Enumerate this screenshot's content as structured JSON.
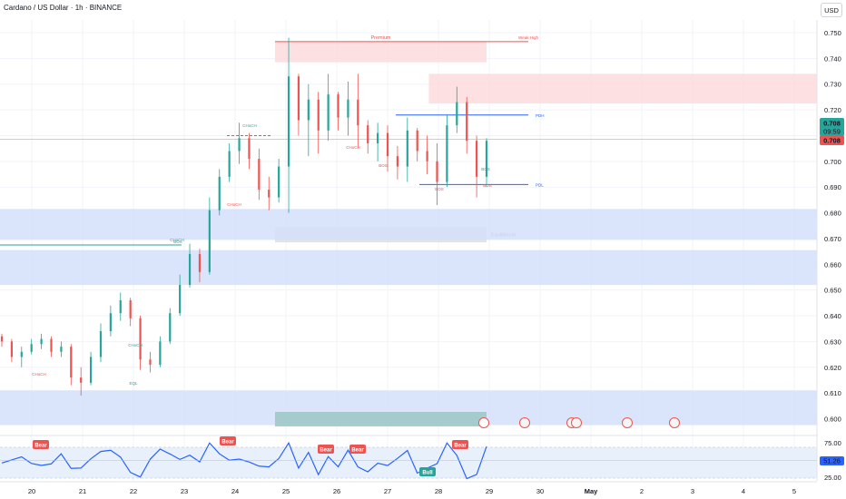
{
  "header": {
    "title": "Cardano / US Dollar · 1h · BINANCE",
    "currency_button": "USD"
  },
  "colors": {
    "bull": "#26a69a",
    "bear": "#ef5350",
    "grid": "#f0f3fa",
    "axis": "#131722",
    "blue_zone": "#d3e0fb",
    "red_zone": "#fcdadd",
    "gray_zone": "#e0e0e0",
    "rsi_line": "#2962ff"
  },
  "chart_data": {
    "type": "candlestick",
    "price_axis": {
      "ticks": [
        "0.750",
        "0.740",
        "0.730",
        "0.720",
        "0.710",
        "0.700",
        "0.690",
        "0.680",
        "0.670",
        "0.660",
        "0.650",
        "0.640",
        "0.630",
        "0.620",
        "0.610",
        "0.600"
      ],
      "ylim": [
        0.5971,
        0.7545
      ]
    },
    "time_axis": {
      "ticks": [
        "20",
        "21",
        "22",
        "23",
        "24",
        "25",
        "26",
        "27",
        "28",
        "29",
        "30",
        "May",
        "2",
        "3",
        "4",
        "5"
      ]
    },
    "price_labels": {
      "last": "0.708",
      "countdown": "09:59",
      "close": "0.708"
    },
    "candles": [
      [
        0.632,
        0.633,
        0.628,
        0.63
      ],
      [
        0.63,
        0.631,
        0.622,
        0.624
      ],
      [
        0.624,
        0.628,
        0.62,
        0.626
      ],
      [
        0.626,
        0.631,
        0.625,
        0.629
      ],
      [
        0.629,
        0.633,
        0.627,
        0.631
      ],
      [
        0.631,
        0.632,
        0.624,
        0.626
      ],
      [
        0.626,
        0.63,
        0.624,
        0.628
      ],
      [
        0.628,
        0.629,
        0.613,
        0.616
      ],
      [
        0.616,
        0.62,
        0.609,
        0.614
      ],
      [
        0.614,
        0.626,
        0.613,
        0.624
      ],
      [
        0.624,
        0.637,
        0.622,
        0.634
      ],
      [
        0.634,
        0.644,
        0.632,
        0.641
      ],
      [
        0.641,
        0.649,
        0.638,
        0.646
      ],
      [
        0.646,
        0.647,
        0.636,
        0.639
      ],
      [
        0.639,
        0.64,
        0.619,
        0.623
      ],
      [
        0.623,
        0.626,
        0.618,
        0.621
      ],
      [
        0.621,
        0.632,
        0.62,
        0.63
      ],
      [
        0.63,
        0.643,
        0.629,
        0.641
      ],
      [
        0.641,
        0.656,
        0.64,
        0.652
      ],
      [
        0.652,
        0.668,
        0.651,
        0.664
      ],
      [
        0.664,
        0.666,
        0.653,
        0.657
      ],
      [
        0.657,
        0.686,
        0.656,
        0.681
      ],
      [
        0.681,
        0.697,
        0.679,
        0.694
      ],
      [
        0.694,
        0.707,
        0.692,
        0.704
      ],
      [
        0.704,
        0.715,
        0.699,
        0.709
      ],
      [
        0.709,
        0.711,
        0.697,
        0.701
      ],
      [
        0.701,
        0.705,
        0.685,
        0.689
      ],
      [
        0.689,
        0.694,
        0.681,
        0.686
      ],
      [
        0.686,
        0.701,
        0.684,
        0.698
      ],
      [
        0.698,
        0.748,
        0.68,
        0.733
      ],
      [
        0.733,
        0.734,
        0.71,
        0.716
      ],
      [
        0.716,
        0.73,
        0.702,
        0.724
      ],
      [
        0.724,
        0.727,
        0.703,
        0.712
      ],
      [
        0.712,
        0.734,
        0.708,
        0.726
      ],
      [
        0.726,
        0.727,
        0.712,
        0.717
      ],
      [
        0.717,
        0.731,
        0.71,
        0.724
      ],
      [
        0.724,
        0.734,
        0.705,
        0.714
      ],
      [
        0.714,
        0.716,
        0.703,
        0.707
      ],
      [
        0.707,
        0.715,
        0.7,
        0.711
      ],
      [
        0.711,
        0.714,
        0.696,
        0.702
      ],
      [
        0.702,
        0.706,
        0.693,
        0.698
      ],
      [
        0.698,
        0.717,
        0.692,
        0.712
      ],
      [
        0.712,
        0.713,
        0.7,
        0.704
      ],
      [
        0.704,
        0.71,
        0.695,
        0.7
      ],
      [
        0.7,
        0.707,
        0.683,
        0.692
      ],
      [
        0.692,
        0.718,
        0.69,
        0.714
      ],
      [
        0.714,
        0.729,
        0.711,
        0.723
      ],
      [
        0.723,
        0.725,
        0.703,
        0.708
      ],
      [
        0.708,
        0.71,
        0.686,
        0.694
      ],
      [
        0.694,
        0.709,
        0.69,
        0.708
      ]
    ],
    "zones": [
      {
        "label": "Premium",
        "high": 0.7465,
        "low": 0.7385,
        "x_start": 0,
        "x_end": 44
      },
      {
        "label": "Weak High",
        "high": 0.7465,
        "low": 0.7465,
        "x_start": 44,
        "x_end": 49
      },
      {
        "label": "",
        "high": 0.734,
        "low": 0.7225,
        "x_start": 32,
        "x_end": 59
      },
      {
        "label": "Equilibrium",
        "high": 0.6745,
        "low": 0.6685,
        "x_start": 0,
        "x_end": 44
      },
      {
        "label": "",
        "high": 0.6815,
        "low": 0.6695,
        "x_start": -100,
        "x_end": 59
      },
      {
        "label": "",
        "high": 0.6655,
        "low": 0.652,
        "x_start": -100,
        "x_end": 59
      },
      {
        "label": "",
        "high": 0.611,
        "low": 0.5975,
        "x_start": -200,
        "x_end": 59
      }
    ],
    "levels": [
      {
        "label": "PDH",
        "price": 0.718
      },
      {
        "label": "PDL",
        "price": 0.691
      },
      {
        "label": "BOS",
        "price": 0.6675
      },
      {
        "label": "CHoCH",
        "price": 0.71
      }
    ],
    "structure_labels": [
      "CHoCH",
      "CHoCH",
      "CHoCH",
      "EQL",
      "CHoCH",
      "BOS",
      "CHoCH",
      "CHoCH",
      "BOS",
      "BOS",
      "BOS"
    ],
    "rsi": {
      "ticks": [
        "75.00",
        "25.00"
      ],
      "value": "51.26",
      "tags": [
        "Bear",
        "Bear",
        "Bear",
        "Bear",
        "Bear",
        "Bull"
      ]
    }
  }
}
